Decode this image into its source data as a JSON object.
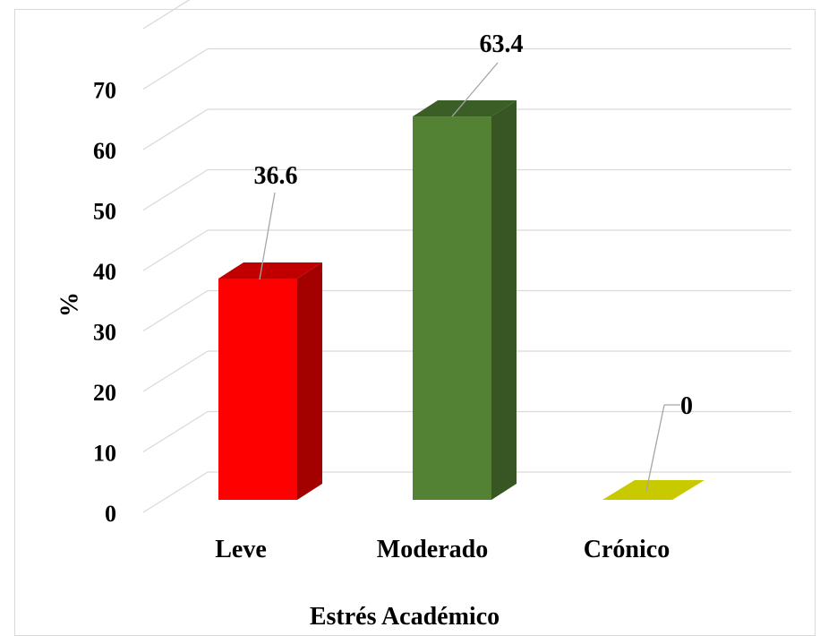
{
  "chart_data": {
    "type": "bar",
    "style": "3d-column",
    "categories": [
      "Leve",
      "Moderado",
      "Crónico"
    ],
    "values": [
      36.6,
      63.4,
      0
    ],
    "data_labels": [
      "36.6",
      "63.4",
      "0"
    ],
    "title": "",
    "xlabel": "Estrés Académico",
    "ylabel": "%",
    "ylim": [
      0,
      70
    ],
    "yticks": [
      "0",
      "10",
      "20",
      "30",
      "40",
      "50",
      "60",
      "70"
    ],
    "ytick_values": [
      0,
      10,
      20,
      30,
      40,
      50,
      60,
      70
    ],
    "grid": true,
    "legend": "none",
    "colors": {
      "front": [
        "#ff0000",
        "#548235",
        "#c9c900"
      ],
      "side": [
        "#a30000",
        "#375623",
        "#8a8a00"
      ],
      "top": [
        "#c00000",
        "#3b5e27",
        "#c9c900"
      ],
      "grid": "#d9d9d9",
      "leader": "#a6a6a6"
    }
  }
}
